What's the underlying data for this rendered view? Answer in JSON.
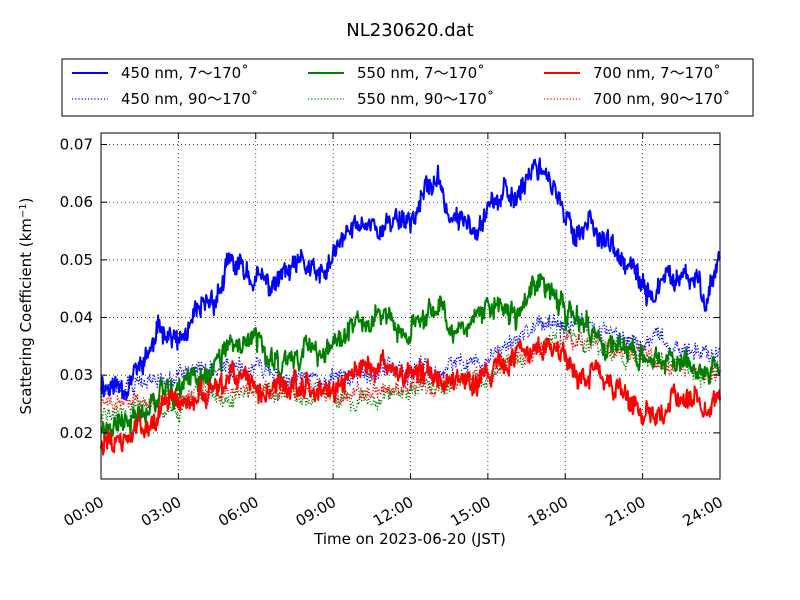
{
  "chart_data": {
    "type": "line",
    "title": "NL230620.dat",
    "xlabel": "Time on 2023-06-20 (JST)",
    "ylabel_main": "Scattering Coefficient (km",
    "ylabel_sup": "−1",
    "ylabel_end": ")",
    "xlim": [
      0,
      24
    ],
    "ylim": [
      0.012,
      0.072
    ],
    "xticks": [
      0,
      3,
      6,
      9,
      12,
      15,
      18,
      21,
      24
    ],
    "xtick_labels": [
      "00:00",
      "03:00",
      "06:00",
      "09:00",
      "12:00",
      "15:00",
      "18:00",
      "21:00",
      "24:00"
    ],
    "yticks": [
      0.02,
      0.03,
      0.04,
      0.05,
      0.06,
      0.07
    ],
    "ytick_labels": [
      "0.02",
      "0.03",
      "0.04",
      "0.05",
      "0.06",
      "0.07"
    ],
    "grid": true,
    "legend_position": "top, above plot, 3 columns",
    "series": [
      {
        "name": "450 nm, 7～170˚",
        "color": "#0000ff",
        "style": "solid",
        "seed": 11,
        "x": [
          0,
          0.5,
          1,
          1.5,
          2,
          2.5,
          3,
          3.5,
          4,
          4.5,
          5,
          5.5,
          6,
          6.5,
          7,
          7.5,
          8,
          8.5,
          9,
          9.5,
          10,
          10.5,
          11,
          11.5,
          12,
          12.5,
          13,
          13.5,
          14,
          14.5,
          15,
          15.5,
          16,
          16.5,
          17,
          17.5,
          18,
          18.5,
          19,
          19.5,
          20,
          20.5,
          21,
          21.5,
          22,
          22.5,
          23,
          23.5,
          24
        ],
        "y": [
          0.029,
          0.028,
          0.029,
          0.031,
          0.035,
          0.039,
          0.035,
          0.038,
          0.041,
          0.044,
          0.049,
          0.048,
          0.047,
          0.045,
          0.047,
          0.048,
          0.049,
          0.046,
          0.05,
          0.054,
          0.056,
          0.057,
          0.055,
          0.058,
          0.057,
          0.061,
          0.064,
          0.058,
          0.056,
          0.057,
          0.06,
          0.061,
          0.06,
          0.065,
          0.067,
          0.064,
          0.056,
          0.055,
          0.057,
          0.054,
          0.05,
          0.048,
          0.045,
          0.044,
          0.047,
          0.046,
          0.046,
          0.044,
          0.051
        ]
      },
      {
        "name": "450 nm, 90～170˚",
        "color": "#0000ff",
        "style": "dotted",
        "seed": 12,
        "x": [
          0,
          1,
          2,
          3,
          4,
          5,
          6,
          7,
          8,
          9,
          10,
          11,
          12,
          13,
          14,
          15,
          16,
          17,
          18,
          19,
          20,
          21,
          22,
          23,
          24
        ],
        "y": [
          0.028,
          0.028,
          0.029,
          0.03,
          0.031,
          0.031,
          0.031,
          0.03,
          0.03,
          0.029,
          0.03,
          0.031,
          0.03,
          0.031,
          0.032,
          0.033,
          0.036,
          0.038,
          0.04,
          0.039,
          0.037,
          0.036,
          0.035,
          0.034,
          0.034
        ]
      },
      {
        "name": "550 nm, 7～170˚",
        "color": "#008000",
        "style": "solid",
        "seed": 21,
        "x": [
          0,
          0.5,
          1,
          1.5,
          2,
          2.5,
          3,
          3.5,
          4,
          4.5,
          5,
          5.5,
          6,
          6.5,
          7,
          7.5,
          8,
          8.5,
          9,
          9.5,
          10,
          10.5,
          11,
          11.5,
          12,
          12.5,
          13,
          13.5,
          14,
          14.5,
          15,
          15.5,
          16,
          16.5,
          17,
          17.5,
          18,
          18.5,
          19,
          19.5,
          20,
          20.5,
          21,
          21.5,
          22,
          22.5,
          23,
          23.5,
          24
        ],
        "y": [
          0.022,
          0.021,
          0.022,
          0.024,
          0.026,
          0.029,
          0.027,
          0.029,
          0.03,
          0.032,
          0.034,
          0.035,
          0.037,
          0.033,
          0.032,
          0.034,
          0.035,
          0.035,
          0.034,
          0.037,
          0.039,
          0.04,
          0.041,
          0.038,
          0.037,
          0.04,
          0.043,
          0.04,
          0.038,
          0.039,
          0.041,
          0.042,
          0.04,
          0.043,
          0.046,
          0.046,
          0.04,
          0.039,
          0.037,
          0.036,
          0.035,
          0.034,
          0.032,
          0.032,
          0.033,
          0.033,
          0.032,
          0.031,
          0.033
        ]
      },
      {
        "name": "550 nm, 90～170˚",
        "color": "#008000",
        "style": "dotted",
        "seed": 22,
        "x": [
          0,
          1,
          2,
          3,
          4,
          5,
          6,
          7,
          8,
          9,
          10,
          11,
          12,
          13,
          14,
          15,
          16,
          17,
          18,
          19,
          20,
          21,
          22,
          23,
          24
        ],
        "y": [
          0.023,
          0.024,
          0.025,
          0.025,
          0.026,
          0.027,
          0.027,
          0.027,
          0.026,
          0.026,
          0.026,
          0.027,
          0.027,
          0.028,
          0.029,
          0.03,
          0.033,
          0.035,
          0.037,
          0.036,
          0.034,
          0.033,
          0.032,
          0.031,
          0.031
        ]
      },
      {
        "name": "700 nm, 7～170˚",
        "color": "#ff0000",
        "style": "solid",
        "seed": 31,
        "x": [
          0,
          0.5,
          1,
          1.5,
          2,
          2.5,
          3,
          3.5,
          4,
          4.5,
          5,
          5.5,
          6,
          6.5,
          7,
          7.5,
          8,
          8.5,
          9,
          9.5,
          10,
          10.5,
          11,
          11.5,
          12,
          12.5,
          13,
          13.5,
          14,
          14.5,
          15,
          15.5,
          16,
          16.5,
          17,
          17.5,
          18,
          18.5,
          19,
          19.5,
          20,
          20.5,
          21,
          21.5,
          22,
          22.5,
          23,
          23.5,
          24
        ],
        "y": [
          0.019,
          0.018,
          0.019,
          0.021,
          0.023,
          0.025,
          0.025,
          0.026,
          0.026,
          0.026,
          0.029,
          0.029,
          0.028,
          0.027,
          0.028,
          0.029,
          0.029,
          0.028,
          0.027,
          0.028,
          0.031,
          0.032,
          0.031,
          0.03,
          0.03,
          0.03,
          0.031,
          0.03,
          0.03,
          0.03,
          0.031,
          0.031,
          0.032,
          0.034,
          0.035,
          0.035,
          0.034,
          0.03,
          0.031,
          0.03,
          0.028,
          0.026,
          0.023,
          0.023,
          0.025,
          0.026,
          0.027,
          0.026,
          0.026
        ]
      },
      {
        "name": "700 nm, 90～170˚",
        "color": "#ff0000",
        "style": "dotted",
        "seed": 32,
        "x": [
          0,
          1,
          2,
          3,
          4,
          5,
          6,
          7,
          8,
          9,
          10,
          11,
          12,
          13,
          14,
          15,
          16,
          17,
          18,
          19,
          20,
          21,
          22,
          23,
          24
        ],
        "y": [
          0.025,
          0.025,
          0.026,
          0.026,
          0.027,
          0.027,
          0.027,
          0.027,
          0.027,
          0.027,
          0.027,
          0.027,
          0.028,
          0.028,
          0.029,
          0.03,
          0.032,
          0.034,
          0.036,
          0.036,
          0.034,
          0.033,
          0.032,
          0.031,
          0.03
        ]
      }
    ]
  }
}
